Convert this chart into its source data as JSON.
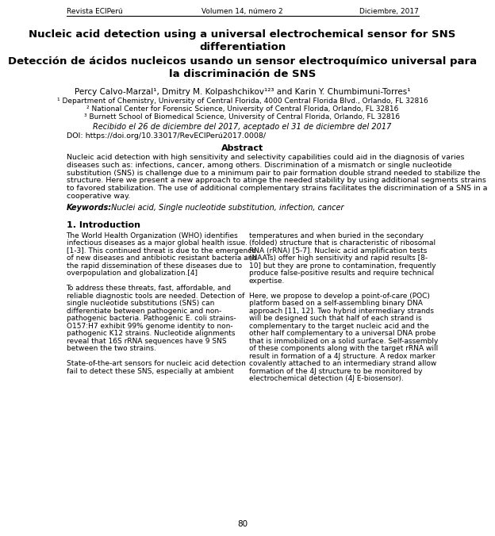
{
  "header_left": "Revista ECIPerú",
  "header_center": "Volumen 14, número 2",
  "header_right": "Diciembre, 2017",
  "title_en": "Nucleic acid detection using a universal electrochemical sensor for SNS\ndifferentiation",
  "title_es": "Detección de ácidos nucleicos usando un sensor electroquímico universal para\nla discriminación de SNS",
  "authors": "Percy Calvo-Marzal¹, Dmitry M. Kolpashchikov¹²³ and Karin Y. Chumbimuni-Torres¹",
  "affil1": "¹ Department of Chemistry, University of Central Florida, 4000 Central Florida Blvd., Orlando, FL 32816",
  "affil2": "² National Center for Forensic Science, University of Central Florida, Orlando, FL 32816",
  "affil3": "³ Burnett School of Biomedical Science, University of Central Florida, Orlando, FL 32816",
  "received": "Recibido el 26 de diciembre del 2017, aceptado el 31 de diciembre del 2017",
  "doi": "DOI: https://doi.org/10.33017/RevECIPerú2017.0008/",
  "abstract_title": "Abstract",
  "keywords_label": "Keywords",
  "keywords_text": "Nuclei acid, Single nucleotide substitution, infection, cancer",
  "intro_title": "1. Introduction",
  "page_number": "80",
  "bg_color": "#ffffff",
  "text_color": "#000000",
  "abstract_lines": [
    "Nucleic acid detection with high sensitivity and selectivity capabilities could aid in the diagnosis of varies",
    "diseases such as: infections, cancer, among others. Discrimination of a mismatch or single nucleotide",
    "substitution (SNS) is challenge due to a minimum pair to pair formation double strand needed to stabilize the",
    "structure. Here we present a new approach to atinge the needed stability by using additional segments strains",
    "to favored stabilization. The use of additional complementary strains facilitates the discrimination of a SNS in a",
    "cooperative way."
  ],
  "col1_lines": [
    "The World Health Organization (WHO) identifies",
    "infectious diseases as a major global health issue.",
    "[1-3]. This continued threat is due to the emergence",
    "of new diseases and antibiotic resistant bacteria and",
    "the rapid dissemination of these diseases due to",
    "overpopulation and globalization.[4]",
    "",
    "To address these threats, fast, affordable, and",
    "reliable diagnostic tools are needed. Detection of",
    "single nucleotide substitutions (SNS) can",
    "differentiate between pathogenic and non-",
    "pathogenic bacteria. Pathogenic E. coli strains-",
    "O157:H7 exhibit 99% genome identity to non-",
    "pathogenic K12 strains. Nucleotide alignments",
    "reveal that 16S rRNA sequences have 9 SNS",
    "between the two strains.",
    "",
    "State-of-the-art sensors for nucleic acid detection",
    "fail to detect these SNS, especially at ambient"
  ],
  "col2_lines": [
    "temperatures and when buried in the secondary",
    "(folded) structure that is characteristic of ribosomal",
    "RNA (rRNA) [5-7]. Nucleic acid amplification tests",
    "(NAATs) offer high sensitivity and rapid results [8-",
    "10] but they are prone to contamination, frequently",
    "produce false-positive results and require technical",
    "expertise.",
    "",
    "Here, we propose to develop a point-of-care (POC)",
    "platform based on a self-assembling binary DNA",
    "approach [11, 12]. Two hybrid intermediary strands",
    "will be designed such that half of each strand is",
    "complementary to the target nucleic acid and the",
    "other half complementary to a universal DNA probe",
    "that is immobilized on a solid surface. Self-assembly",
    "of these components along with the target rRNA will",
    "result in formation of a 4J structure. A redox marker",
    "covalently attached to an intermediary strand allow",
    "formation of the 4J structure to be monitored by",
    "electrochemical detection (4J E-biosensor)."
  ]
}
